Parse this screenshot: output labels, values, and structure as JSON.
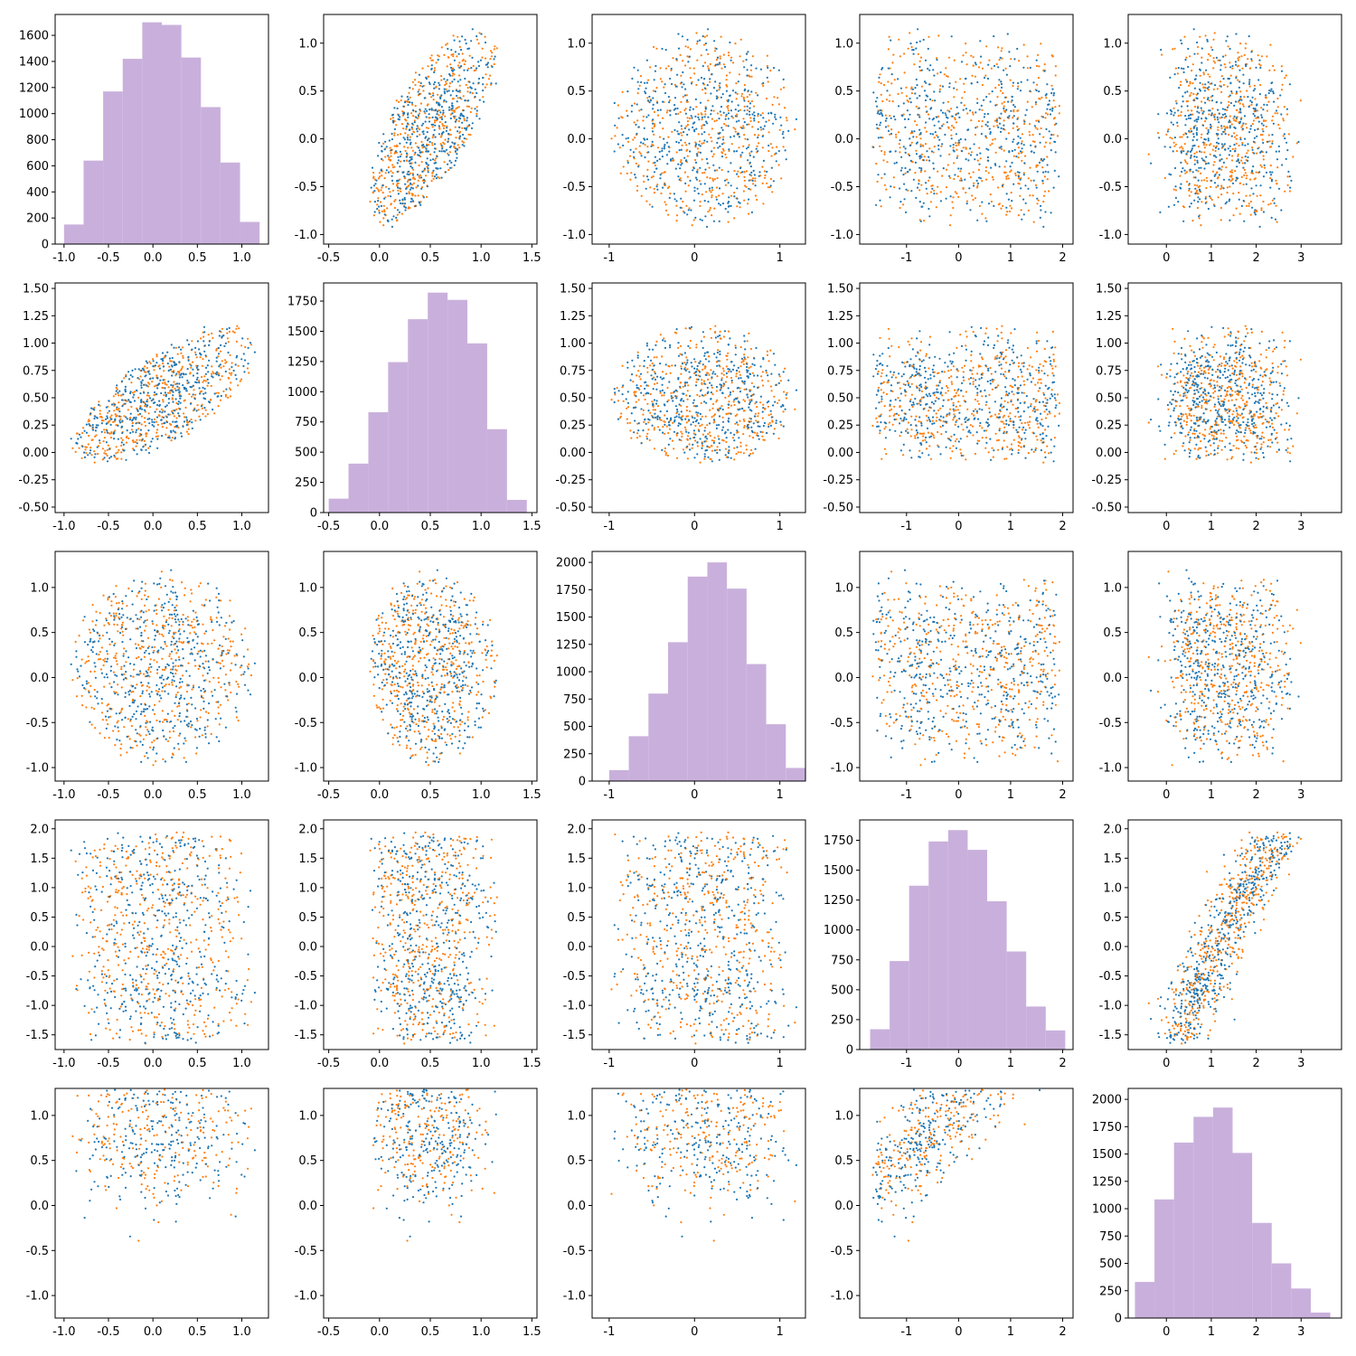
{
  "chart_data": {
    "type": "scatter",
    "layout": "pair-plot",
    "grid": false,
    "n_points_per_series": 5000,
    "colors": {
      "series_a": "#1f77b4",
      "series_b": "#ff7f0e",
      "histogram": "#c9b0dc"
    },
    "variables": [
      {
        "xlim": [
          -1.1,
          1.3
        ],
        "xticks": [
          -1.0,
          -0.5,
          0.0,
          0.5,
          1.0
        ],
        "ylim": [
          -1.1,
          1.3
        ],
        "yticks": [
          -1.0,
          -0.5,
          0.0,
          0.5,
          1.0
        ]
      },
      {
        "xlim": [
          -0.55,
          1.55
        ],
        "xticks": [
          -0.5,
          0.0,
          0.5,
          1.0,
          1.5
        ],
        "ylim": [
          -0.55,
          1.55
        ],
        "yticks": [
          -0.5,
          -0.25,
          0.0,
          0.25,
          0.5,
          0.75,
          1.0,
          1.25,
          1.5
        ]
      },
      {
        "xlim": [
          -1.2,
          1.3
        ],
        "xticks": [
          -1,
          0,
          1
        ],
        "ylim": [
          -1.15,
          1.4
        ],
        "yticks": [
          -1.0,
          -0.5,
          0.0,
          0.5,
          1.0
        ]
      },
      {
        "xlim": [
          -1.9,
          2.2
        ],
        "xticks": [
          -1,
          0,
          1,
          2
        ],
        "ylim": [
          -1.75,
          2.15
        ],
        "yticks": [
          -1.5,
          -1.0,
          -0.5,
          0.0,
          0.5,
          1.0,
          1.5,
          2.0
        ]
      },
      {
        "xlim": [
          -0.85,
          3.9
        ],
        "xticks": [
          0,
          1,
          2,
          3
        ],
        "ylim": [
          -1.25,
          1.3
        ],
        "yticks": [
          -1.0,
          -0.5,
          0.0,
          0.5,
          1.0
        ]
      }
    ],
    "diagonal_ylim": [
      1760,
      1900,
      2100,
      1920,
      2100
    ],
    "diagonal_yticks": [
      [
        0,
        200,
        400,
        600,
        800,
        1000,
        1200,
        1400,
        1600
      ],
      [
        0,
        250,
        500,
        750,
        1000,
        1250,
        1500,
        1750
      ],
      [
        0,
        250,
        500,
        750,
        1000,
        1250,
        1500,
        1750,
        2000
      ],
      [
        0,
        250,
        500,
        750,
        1000,
        1250,
        1500,
        1750
      ],
      [
        0,
        250,
        500,
        750,
        1000,
        1250,
        1500,
        1750,
        2000
      ]
    ],
    "histograms": [
      {
        "bin_edges": [
          -1.0,
          -0.78,
          -0.56,
          -0.34,
          -0.12,
          0.1,
          0.32,
          0.54,
          0.76,
          0.98,
          1.2
        ],
        "counts": [
          150,
          640,
          1170,
          1420,
          1700,
          1680,
          1430,
          1050,
          625,
          170
        ]
      },
      {
        "bin_edges": [
          -0.5,
          -0.305,
          -0.11,
          0.085,
          0.28,
          0.475,
          0.67,
          0.865,
          1.06,
          1.255,
          1.45
        ],
        "counts": [
          115,
          405,
          830,
          1245,
          1600,
          1820,
          1760,
          1400,
          690,
          105
        ]
      },
      {
        "bin_edges": [
          -1.0,
          -0.77,
          -0.54,
          -0.31,
          -0.08,
          0.15,
          0.38,
          0.61,
          0.84,
          1.07,
          1.3
        ],
        "counts": [
          100,
          410,
          800,
          1270,
          1870,
          2000,
          1760,
          1070,
          520,
          120
        ]
      },
      {
        "bin_edges": [
          -1.7,
          -1.325,
          -0.95,
          -0.575,
          -0.2,
          0.175,
          0.55,
          0.925,
          1.3,
          1.675,
          2.05
        ],
        "counts": [
          170,
          740,
          1370,
          1740,
          1835,
          1670,
          1240,
          820,
          360,
          160
        ]
      },
      {
        "bin_edges": [
          -0.7,
          -0.265,
          0.17,
          0.605,
          1.04,
          1.475,
          1.91,
          2.345,
          2.78,
          3.215,
          3.65
        ],
        "counts": [
          330,
          1085,
          1605,
          1840,
          1925,
          1510,
          870,
          500,
          270,
          50
        ]
      }
    ]
  }
}
